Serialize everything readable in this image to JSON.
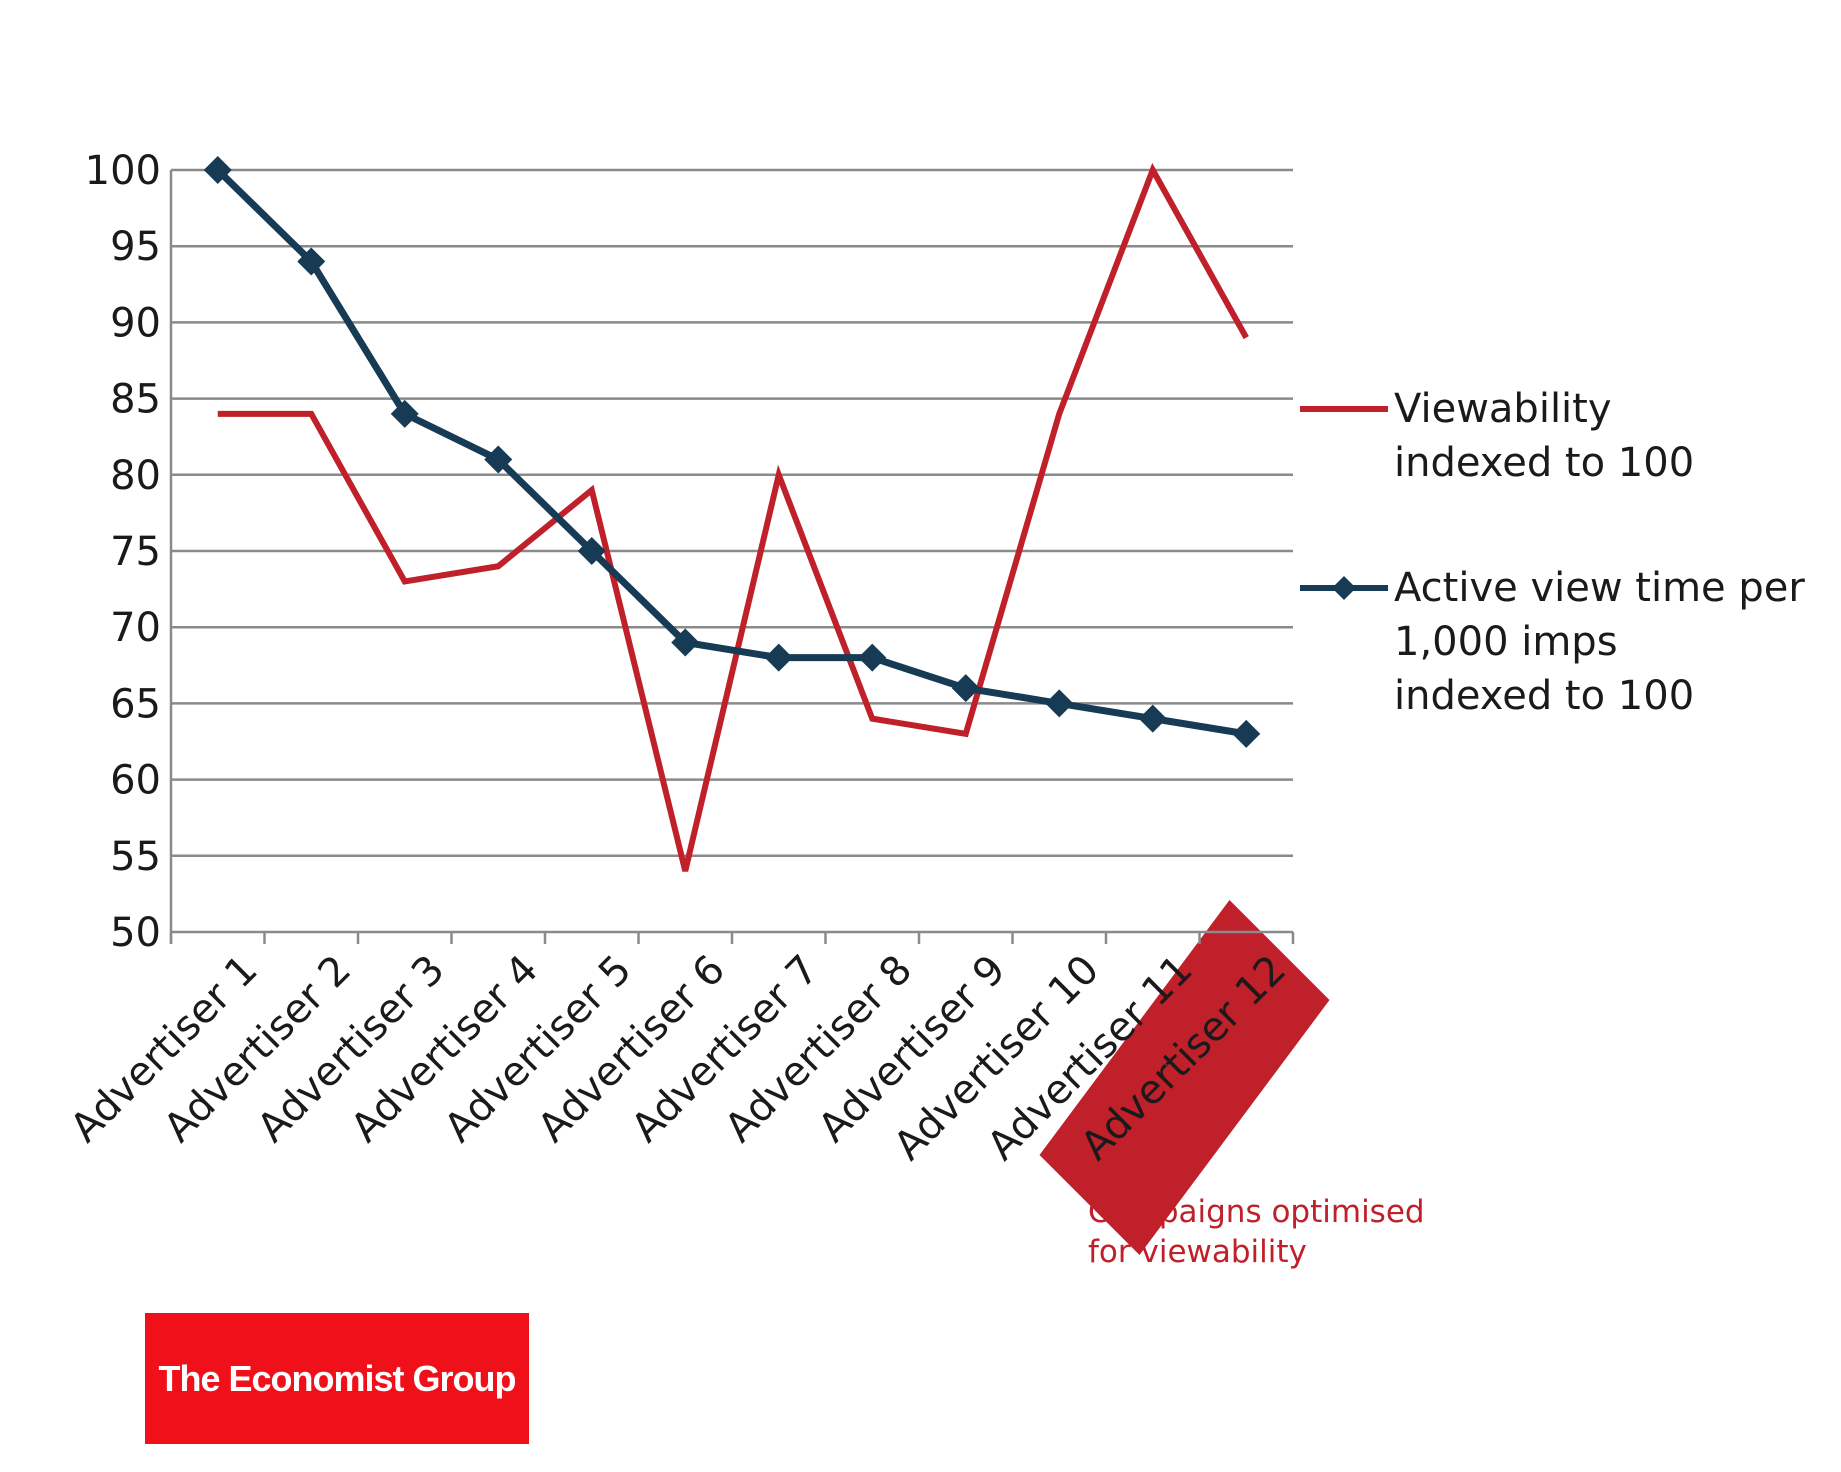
{
  "chart_data": {
    "type": "line",
    "categories": [
      "Advertiser 1",
      "Advertiser 2",
      "Advertiser 3",
      "Advertiser 4",
      "Advertiser 5",
      "Advertiser 6",
      "Advertiser 7",
      "Advertiser 8",
      "Advertiser 9",
      "Advertiser 10",
      "Advertiser 11",
      "Advertiser 12"
    ],
    "series": [
      {
        "name": "Viewability indexed to 100",
        "name_lines": [
          "Viewability",
          "indexed to 100"
        ],
        "color": "#c0202a",
        "marker": "none",
        "values": [
          84,
          84,
          73,
          74,
          79,
          54,
          80,
          64,
          63,
          84,
          100,
          89
        ]
      },
      {
        "name": "Active view time per 1,000 imps indexed to 100",
        "name_lines": [
          "Active view time per",
          "1,000 imps",
          "indexed to 100"
        ],
        "color": "#173a55",
        "marker": "diamond",
        "values": [
          100,
          94,
          84,
          81,
          75,
          69,
          68,
          68,
          66,
          65,
          64,
          63
        ]
      }
    ],
    "ylim": [
      50,
      100
    ],
    "yticks": [
      50,
      55,
      60,
      65,
      70,
      75,
      80,
      85,
      90,
      95,
      100
    ],
    "grid": true,
    "legend": "right",
    "highlight": {
      "categories": [
        "Advertiser 11",
        "Advertiser 12"
      ],
      "color": "#c0202a"
    },
    "annotation": [
      "Campaigns optimised",
      "for viewability"
    ]
  },
  "logo": {
    "text": "The Economist Group",
    "color": "#f0101a"
  }
}
